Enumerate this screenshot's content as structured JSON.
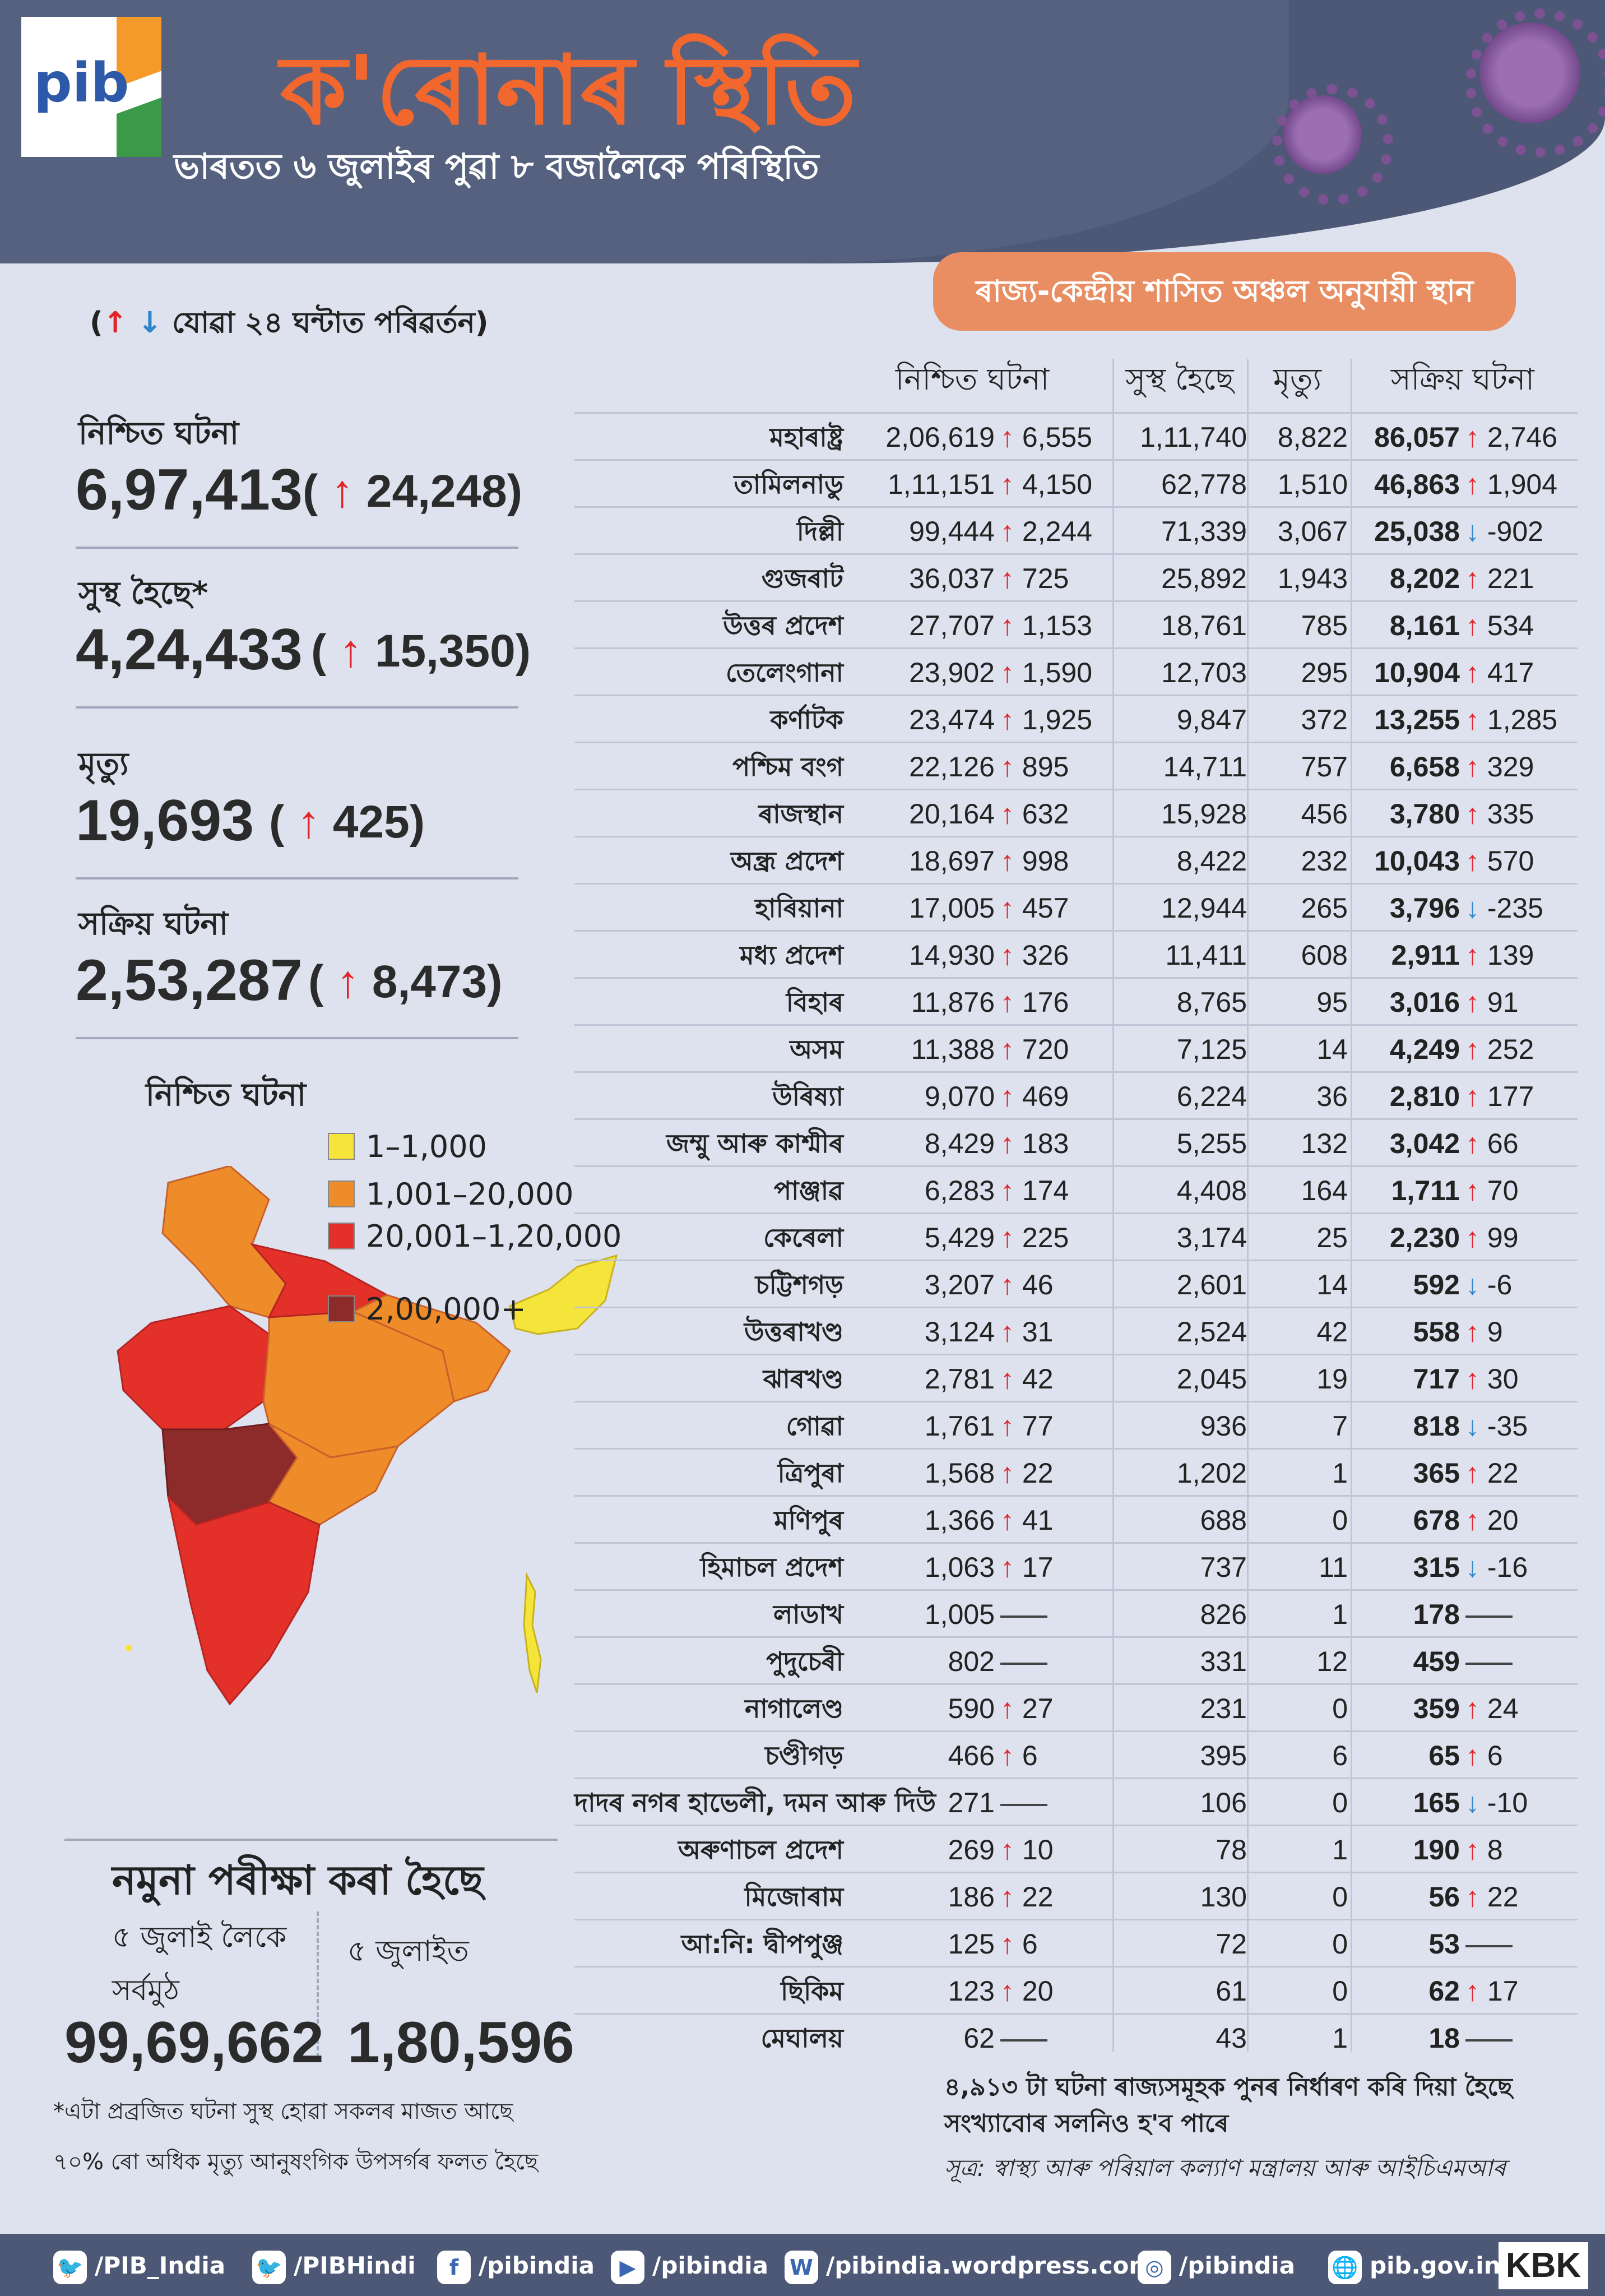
{
  "header": {
    "logo": "pib",
    "title": "ক'ৰোনাৰ স্থিতি",
    "subtitle": "ভাৰতত ৬ জুলাইৰ পুৱা ৮ বজালৈকে পৰিস্থিতি"
  },
  "change_note": "যোৱা ২৪ ঘন্টাত পৰিৱৰ্তন",
  "symbols": {
    "up": "↑",
    "down": "↓"
  },
  "summary": [
    {
      "label": "নিশ্চিত ঘটনা",
      "value": "6,97,413",
      "change": "24,248",
      "direction": "up"
    },
    {
      "label": "সুস্থ হৈছে*",
      "value": "4,24,433",
      "change": "15,350",
      "direction": "up"
    },
    {
      "label": "মৃত্যু",
      "value": "19,693",
      "change": "425",
      "direction": "up"
    },
    {
      "label": "সক্ৰিয় ঘটনা",
      "value": "2,53,287",
      "change": "8,473",
      "direction": "up"
    }
  ],
  "map": {
    "title": "নিশ্চিত ঘটনা",
    "legend": [
      {
        "label": "1–1,000",
        "color": "#f5e53a"
      },
      {
        "label": "1,001–20,000",
        "color": "#ef8c2a"
      },
      {
        "label": "20,001–1,20,000",
        "color": "#e3312a"
      },
      {
        "label": "2,00,000+",
        "color": "#8d2a2a"
      }
    ]
  },
  "testing": {
    "title": "নমুনা পৰীক্ষা কৰা হৈছে",
    "cumulative_label_1": "৫ জুলাই লৈকে",
    "cumulative_label_2": "সৰ্বমুঠ",
    "day_label": "৫ জুলাইত",
    "cumulative_value": "99,69,662",
    "day_value": "1,80,596"
  },
  "footnotes": [
    "*এটা প্ৰব্ৰজিত ঘটনা সুস্থ হোৱা সকলৰ মাজত আছে",
    "৭০% ৰো অধিক মৃত্যু আনুষংগিক উপসৰ্গৰ ফলত হৈছে"
  ],
  "table_badge": "ৰাজ্য-কেন্দ্ৰীয় শাসিত অঞ্চল অনুযায়ী স্থান",
  "columns": {
    "confirmed": "নিশ্চিত ঘটনা",
    "recovered": "সুস্থ হৈছে",
    "deaths": "মৃত্যু",
    "active": "সক্ৰিয় ঘটনা"
  },
  "bottom_notes": {
    "line1": "৪,৯১৩ টা ঘটনা ৰাজ্যসমূহক পুনৰ নিৰ্ধাৰণ কৰি দিয়া হৈছে",
    "line2": "সংখ্যাবোৰ সলনিও হ'ব পাৰে",
    "source": "সূত্ৰ: স্বাস্থ্য আৰু পৰিয়াল কল্যাণ মন্ত্ৰালয় আৰু আইচিএমআৰ"
  },
  "footer": [
    {
      "icon": "twitter-icon",
      "glyph": "🐦",
      "text": "/PIB_India"
    },
    {
      "icon": "twitter-icon",
      "glyph": "🐦",
      "text": "/PIBHindi"
    },
    {
      "icon": "facebook-icon",
      "glyph": "f",
      "text": "/pibindia"
    },
    {
      "icon": "youtube-icon",
      "glyph": "▶",
      "text": "/pibindia"
    },
    {
      "icon": "wordpress-icon",
      "glyph": "W",
      "text": "/pibindia.wordpress.com"
    },
    {
      "icon": "instagram-icon",
      "glyph": "◎",
      "text": "/pibindia"
    },
    {
      "icon": "globe-icon",
      "glyph": "🌐",
      "text": "pib.gov.in"
    }
  ],
  "brand": "KBK",
  "colors": {
    "up": "#e3242b",
    "down": "#2e86c8",
    "title": "#f2672d",
    "header": "#4d5877",
    "badge": "#e98e63"
  },
  "chart_data": {
    "type": "table",
    "columns": [
      "state",
      "confirmed",
      "confirmed_change",
      "recovered",
      "deaths",
      "active",
      "active_change"
    ],
    "rows": [
      [
        "মহাৰাষ্ট্ৰ",
        "2,06,619",
        6555,
        "1,11,740",
        "8,822",
        "86,057",
        2746
      ],
      [
        "তামিলনাডু",
        "1,11,151",
        4150,
        "62,778",
        "1,510",
        "46,863",
        1904
      ],
      [
        "দিল্লী",
        "99,444",
        2244,
        "71,339",
        "3,067",
        "25,038",
        -902
      ],
      [
        "গুজৰাট",
        "36,037",
        725,
        "25,892",
        "1,943",
        "8,202",
        221
      ],
      [
        "উত্তৰ প্ৰদেশ",
        "27,707",
        1153,
        "18,761",
        "785",
        "8,161",
        534
      ],
      [
        "তেলেংগানা",
        "23,902",
        1590,
        "12,703",
        "295",
        "10,904",
        417
      ],
      [
        "কৰ্ণাটক",
        "23,474",
        1925,
        "9,847",
        "372",
        "13,255",
        1285
      ],
      [
        "পশ্চিম বংগ",
        "22,126",
        895,
        "14,711",
        "757",
        "6,658",
        329
      ],
      [
        "ৰাজস্থান",
        "20,164",
        632,
        "15,928",
        "456",
        "3,780",
        335
      ],
      [
        "অন্ধ্ৰ প্ৰদেশ",
        "18,697",
        998,
        "8,422",
        "232",
        "10,043",
        570
      ],
      [
        "হাৰিয়ানা",
        "17,005",
        457,
        "12,944",
        "265",
        "3,796",
        -235
      ],
      [
        "মধ্য প্ৰদেশ",
        "14,930",
        326,
        "11,411",
        "608",
        "2,911",
        139
      ],
      [
        "বিহাৰ",
        "11,876",
        176,
        "8,765",
        "95",
        "3,016",
        91
      ],
      [
        "অসম",
        "11,388",
        720,
        "7,125",
        "14",
        "4,249",
        252
      ],
      [
        "উৰিষ্যা",
        "9,070",
        469,
        "6,224",
        "36",
        "2,810",
        177
      ],
      [
        "জম্মু আৰু কাশ্মীৰ",
        "8,429",
        183,
        "5,255",
        "132",
        "3,042",
        66
      ],
      [
        "পাঞ্জাৱ",
        "6,283",
        174,
        "4,408",
        "164",
        "1,711",
        70
      ],
      [
        "কেৰেলা",
        "5,429",
        225,
        "3,174",
        "25",
        "2,230",
        99
      ],
      [
        "চট্টিশগড়",
        "3,207",
        46,
        "2,601",
        "14",
        "592",
        -6
      ],
      [
        "উত্তৰাখণ্ড",
        "3,124",
        31,
        "2,524",
        "42",
        "558",
        9
      ],
      [
        "ঝাৰখণ্ড",
        "2,781",
        42,
        "2,045",
        "19",
        "717",
        30
      ],
      [
        "গোৱা",
        "1,761",
        77,
        "936",
        "7",
        "818",
        -35
      ],
      [
        "ত্ৰিপুৰা",
        "1,568",
        22,
        "1,202",
        "1",
        "365",
        22
      ],
      [
        "মণিপুৰ",
        "1,366",
        41,
        "688",
        "0",
        "678",
        20
      ],
      [
        "হিমাচল প্ৰদেশ",
        "1,063",
        17,
        "737",
        "11",
        "315",
        -16
      ],
      [
        "লাডাখ",
        "1,005",
        0,
        "826",
        "1",
        "178",
        0
      ],
      [
        "পুদুচেৰী",
        "802",
        0,
        "331",
        "12",
        "459",
        0
      ],
      [
        "নাগালেণ্ড",
        "590",
        27,
        "231",
        "0",
        "359",
        24
      ],
      [
        "চণ্ডীগড়",
        "466",
        6,
        "395",
        "6",
        "65",
        6
      ],
      [
        "দাদৰ নগৰ হাভেলী, দমন আৰু দিউ",
        "271",
        0,
        "106",
        "0",
        "165",
        -10
      ],
      [
        "অৰুণাচল প্ৰদেশ",
        "269",
        10,
        "78",
        "1",
        "190",
        8
      ],
      [
        "মিজোৰাম",
        "186",
        22,
        "130",
        "0",
        "56",
        22
      ],
      [
        "আ:নি: দ্বীপপুঞ্জ",
        "125",
        6,
        "72",
        "0",
        "53",
        0
      ],
      [
        "ছিকিম",
        "123",
        20,
        "61",
        "0",
        "62",
        17
      ],
      [
        "মেঘালয়",
        "62",
        0,
        "43",
        "1",
        "18",
        0
      ]
    ]
  }
}
